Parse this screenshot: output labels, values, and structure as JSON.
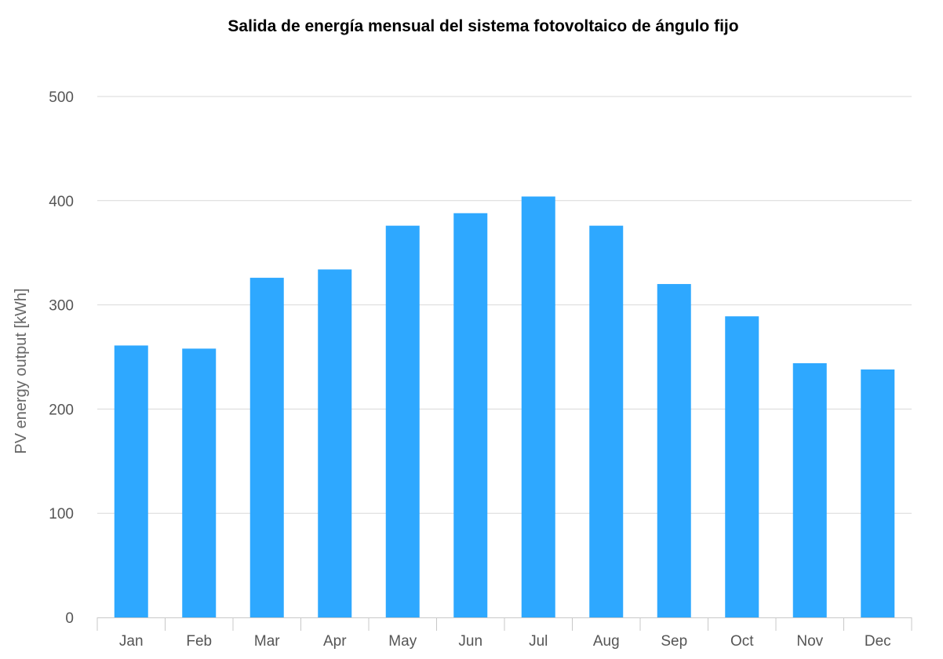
{
  "chart_data": {
    "type": "bar",
    "title": "Salida de energía mensual del sistema fotovoltaico de ángulo fijo",
    "xlabel": "",
    "ylabel": "PV energy output [kWh]",
    "categories": [
      "Jan",
      "Feb",
      "Mar",
      "Apr",
      "May",
      "Jun",
      "Jul",
      "Aug",
      "Sep",
      "Oct",
      "Nov",
      "Dec"
    ],
    "values": [
      261,
      258,
      326,
      334,
      376,
      388,
      404,
      376,
      320,
      289,
      244,
      238
    ],
    "ylim": [
      0,
      500
    ],
    "yticks": [
      0,
      100,
      200,
      300,
      400,
      500
    ],
    "grid": true,
    "legend": "none",
    "colors": {
      "bar": "#2ea8ff",
      "grid": "#d9d9d9",
      "axis": "#c8c8c8"
    }
  }
}
